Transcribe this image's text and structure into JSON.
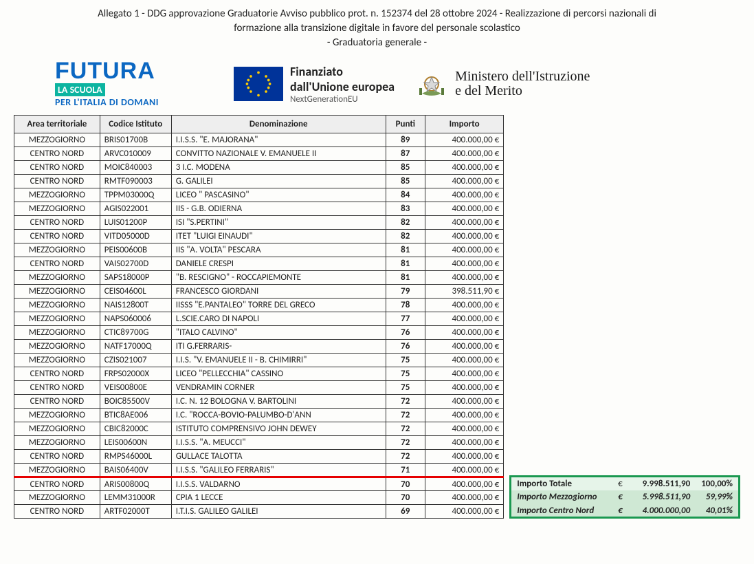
{
  "heading": {
    "line1": "Allegato 1 - DDG approvazione Graduatorie Avviso pubblico prot. n. 152374 del 28 ottobre 2024 - Realizzazione di percorsi nazionali di",
    "line2": "formazione alla transizione digitale in favore del personale scolastico",
    "line3": "- Graduatoria generale -"
  },
  "logos": {
    "futura": {
      "word": "FUTURA",
      "bar": "LA SCUOLA",
      "sub": "PER L'ITALIA DI DOMANI"
    },
    "eu": {
      "l1": "Finanziato",
      "l2": "dall'Unione europea",
      "l3": "NextGenerationEU"
    },
    "ministero": {
      "l1": "Ministero dell'Istruzione",
      "l2": "e del Merito"
    }
  },
  "table": {
    "headers": [
      "Area territoriale",
      "Codice Istituto",
      "Denominazione",
      "Punti",
      "Importo"
    ],
    "cutoff_after_index": 24,
    "rows": [
      [
        "MEZZOGIORNO",
        "BRIS01700B",
        "I.I.S.S. \"E. MAJORANA\"",
        "89",
        "400.000,00 €"
      ],
      [
        "CENTRO NORD",
        "ARVC010009",
        "CONVITTO NAZIONALE V. EMANUELE II",
        "87",
        "400.000,00 €"
      ],
      [
        "CENTRO NORD",
        "MOIC840003",
        "3 I.C. MODENA",
        "85",
        "400.000,00 €"
      ],
      [
        "CENTRO NORD",
        "RMTF090003",
        "G. GALILEI",
        "85",
        "400.000,00 €"
      ],
      [
        "MEZZOGIORNO",
        "TPPM03000Q",
        "LICEO \" PASCASINO\"",
        "84",
        "400.000,00 €"
      ],
      [
        "MEZZOGIORNO",
        "AGIS022001",
        "IIS - G.B. ODIERNA",
        "83",
        "400.000,00 €"
      ],
      [
        "CENTRO NORD",
        "LUIS01200P",
        "ISI \"S.PERTINI\"",
        "82",
        "400.000,00 €"
      ],
      [
        "CENTRO NORD",
        "VITD05000D",
        "ITET \"LUIGI EINAUDI\"",
        "82",
        "400.000,00 €"
      ],
      [
        "MEZZOGIORNO",
        "PEIS00600B",
        "IIS  \"A. VOLTA\" PESCARA",
        "81",
        "400.000,00 €"
      ],
      [
        "CENTRO NORD",
        "VAIS02700D",
        "DANIELE CRESPI",
        "81",
        "400.000,00 €"
      ],
      [
        "MEZZOGIORNO",
        "SAPS18000P",
        "\"B. RESCIGNO\" - ROCCAPIEMONTE",
        "81",
        "400.000,00 €"
      ],
      [
        "MEZZOGIORNO",
        "CEIS04600L",
        "FRANCESCO GIORDANI",
        "79",
        "398.511,90 €"
      ],
      [
        "MEZZOGIORNO",
        "NAIS12800T",
        "IISSS \"E.PANTALEO\" TORRE DEL GRECO",
        "78",
        "400.000,00 €"
      ],
      [
        "MEZZOGIORNO",
        "NAPS060006",
        "L.SCIE.CARO DI NAPOLI",
        "77",
        "400.000,00 €"
      ],
      [
        "MEZZOGIORNO",
        "CTIC89700G",
        "\"ITALO CALVINO\"",
        "76",
        "400.000,00 €"
      ],
      [
        "MEZZOGIORNO",
        "NATF17000Q",
        "ITI G.FERRARIS-",
        "76",
        "400.000,00 €"
      ],
      [
        "MEZZOGIORNO",
        "CZIS021007",
        "I.I.S. \"V. EMANUELE II - B. CHIMIRRI\"",
        "75",
        "400.000,00 €"
      ],
      [
        "CENTRO NORD",
        "FRPS02000X",
        "LICEO  \"PELLECCHIA\" CASSINO",
        "75",
        "400.000,00 €"
      ],
      [
        "CENTRO NORD",
        "VEIS00800E",
        "VENDRAMIN CORNER",
        "75",
        "400.000,00 €"
      ],
      [
        "CENTRO NORD",
        "BOIC85500V",
        "I.C. N. 12 BOLOGNA V. BARTOLINI",
        "72",
        "400.000,00 €"
      ],
      [
        "MEZZOGIORNO",
        "BTIC8AE006",
        "I.C. \"ROCCA-BOVIO-PALUMBO-D'ANN",
        "72",
        "400.000,00 €"
      ],
      [
        "MEZZOGIORNO",
        "CBIC82000C",
        "ISTITUTO COMPRENSIVO JOHN DEWEY",
        "72",
        "400.000,00 €"
      ],
      [
        "MEZZOGIORNO",
        "LEIS00600N",
        "I.I.S.S. \"A. MEUCCI\"",
        "72",
        "400.000,00 €"
      ],
      [
        "CENTRO NORD",
        "RMPS46000L",
        "GULLACE TALOTTA",
        "72",
        "400.000,00 €"
      ],
      [
        "MEZZOGIORNO",
        "BAIS06400V",
        "I.I.S.S. \"GALILEO FERRARIS\"",
        "71",
        "400.000,00 €"
      ],
      [
        "CENTRO NORD",
        "ARIS00800Q",
        "I.I.S.S. VALDARNO",
        "70",
        "400.000,00 €"
      ],
      [
        "MEZZOGIORNO",
        "LEMM31000R",
        "CPIA 1 LECCE",
        "70",
        "400.000,00 €"
      ],
      [
        "CENTRO NORD",
        "ARTF02000T",
        "I.T.I.S. GALILEO GALILEI",
        "69",
        "400.000,00 €"
      ]
    ]
  },
  "summary": {
    "rows": [
      {
        "label": "Importo Totale",
        "cur": "€",
        "value": "9.998.511,90",
        "pct": "100,00%"
      },
      {
        "label": "Importo Mezzogiorno",
        "cur": "€",
        "value": "5.998.511,90",
        "pct": "59,99%"
      },
      {
        "label": "Importo Centro Nord",
        "cur": "€",
        "value": "4.000.000,00",
        "pct": "40,01%"
      }
    ]
  },
  "colors": {
    "header_bg": "#eeeeee",
    "border": "#333333",
    "cutoff": "#e60000",
    "summary_border": "#1a9850",
    "summary_bg": "#e6f4e9",
    "summary_row_bg": "#cfe8d4",
    "futura_blue": "#0b67c2",
    "futura_green": "#0cb4a0",
    "eu_blue": "#003399",
    "eu_gold": "#ffcc00"
  }
}
